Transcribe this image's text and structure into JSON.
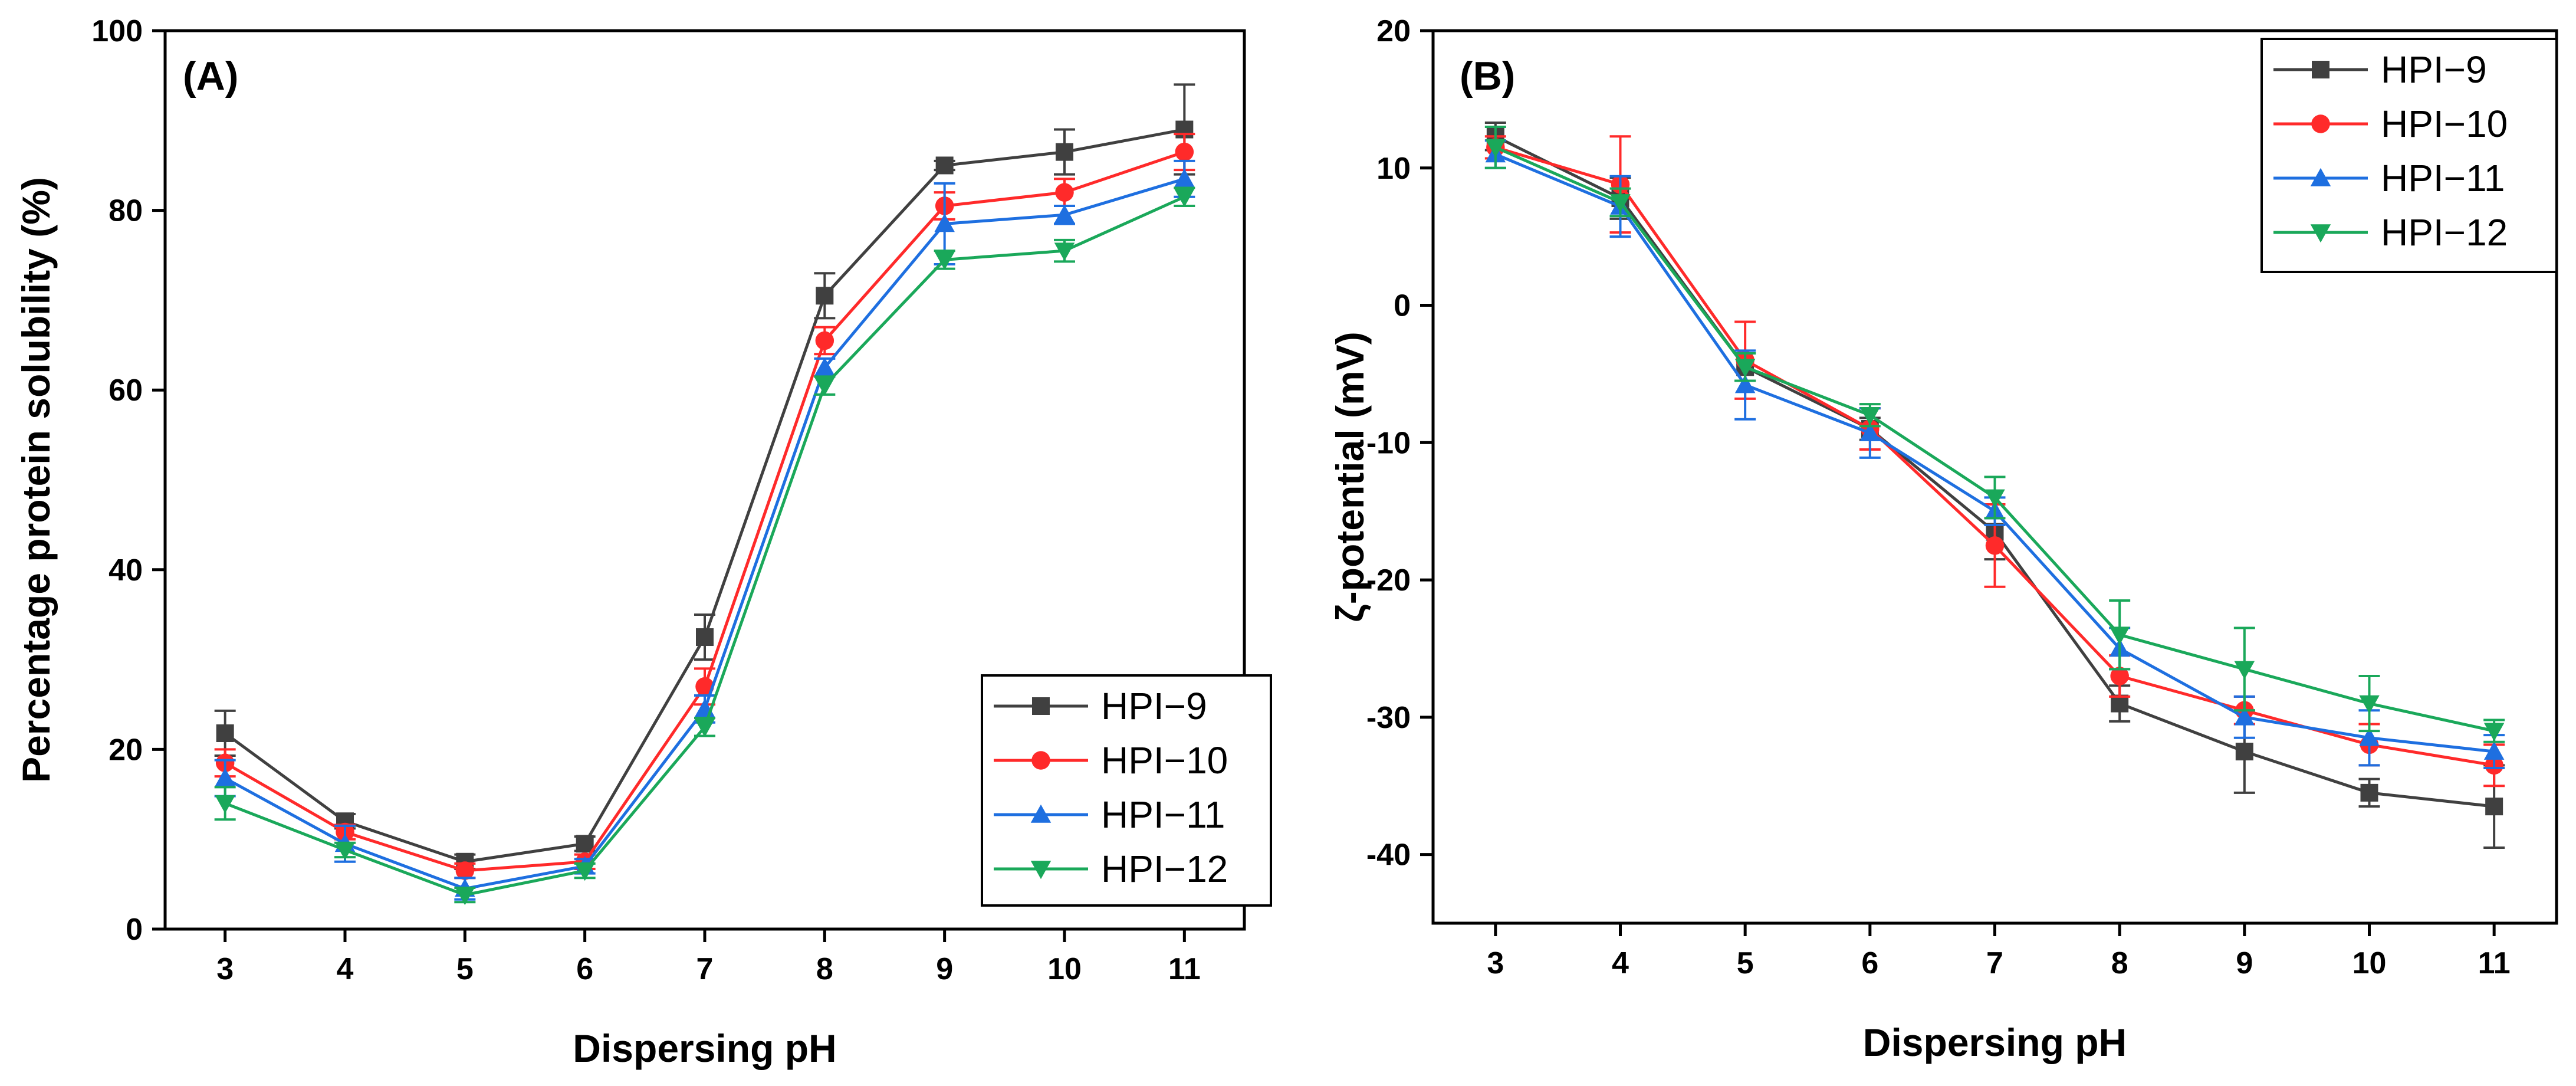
{
  "chart_data": [
    {
      "type": "line",
      "panel_label": "(A)",
      "title": "",
      "xlabel": "Dispersing pH",
      "ylabel": "Percentage protein solubility (%)",
      "x": [
        3,
        4,
        5,
        6,
        7,
        8,
        9,
        10,
        11
      ],
      "xlim": [
        2.5,
        11.5
      ],
      "ylim": [
        0,
        100
      ],
      "yticks": [
        0,
        20,
        40,
        60,
        80,
        100
      ],
      "legend_position": "bottom-right",
      "series": [
        {
          "name": "HPI−9",
          "color": "#404040",
          "marker": "square",
          "values": [
            21.8,
            12.0,
            7.5,
            9.5,
            32.5,
            70.5,
            85.0,
            86.5,
            89.0
          ],
          "errors": [
            2.5,
            0.8,
            0.8,
            0.8,
            2.5,
            2.5,
            0.5,
            2.5,
            5.0
          ]
        },
        {
          "name": "HPI−10",
          "color": "#ff2a2a",
          "marker": "circle",
          "values": [
            18.5,
            10.8,
            6.5,
            7.5,
            27.0,
            65.5,
            80.5,
            82.0,
            86.5
          ],
          "errors": [
            1.5,
            0.8,
            0.8,
            0.8,
            2.0,
            1.5,
            1.5,
            1.5,
            2.0
          ]
        },
        {
          "name": "HPI−11",
          "color": "#1e6fe0",
          "marker": "triangle-up",
          "values": [
            16.8,
            9.5,
            4.5,
            7.0,
            24.5,
            62.5,
            78.5,
            79.5,
            83.5
          ],
          "errors": [
            2.0,
            2.0,
            1.2,
            0.8,
            1.5,
            1.0,
            4.5,
            1.0,
            2.0
          ]
        },
        {
          "name": "HPI−12",
          "color": "#1aa85a",
          "marker": "triangle-down",
          "values": [
            14.0,
            8.8,
            3.8,
            6.5,
            22.5,
            60.5,
            74.5,
            75.5,
            81.5
          ],
          "errors": [
            1.8,
            0.8,
            0.8,
            0.8,
            1.0,
            1.0,
            1.0,
            1.2,
            1.0
          ]
        }
      ]
    },
    {
      "type": "line",
      "panel_label": "(B)",
      "title": "",
      "xlabel": "Dispersing pH",
      "ylabel": "ζ-potential (mV)",
      "x": [
        3,
        4,
        5,
        6,
        7,
        8,
        9,
        10,
        11
      ],
      "xlim": [
        2.5,
        11.5
      ],
      "ylim": [
        -45,
        20
      ],
      "yticks": [
        -40,
        -30,
        -20,
        -10,
        0,
        10,
        20
      ],
      "legend_position": "top-right",
      "series": [
        {
          "name": "HPI−9",
          "color": "#404040",
          "marker": "square",
          "values": [
            12.3,
            7.8,
            -4.5,
            -9.0,
            -16.5,
            -29.0,
            -32.5,
            -35.5,
            -36.5
          ],
          "errors": [
            1.0,
            1.5,
            1.0,
            0.8,
            2.0,
            1.3,
            3.0,
            1.0,
            3.0
          ]
        },
        {
          "name": "HPI−10",
          "color": "#ff2a2a",
          "marker": "circle",
          "values": [
            11.5,
            8.8,
            -4.0,
            -9.0,
            -17.5,
            -27.0,
            -29.5,
            -32.0,
            -33.5
          ],
          "errors": [
            0.8,
            3.5,
            2.8,
            1.5,
            3.0,
            1.5,
            1.0,
            1.5,
            1.5
          ]
        },
        {
          "name": "HPI−11",
          "color": "#1e6fe0",
          "marker": "triangle-up",
          "values": [
            11.0,
            7.2,
            -5.8,
            -9.3,
            -15.0,
            -25.0,
            -30.0,
            -31.5,
            -32.5
          ],
          "errors": [
            1.0,
            2.2,
            2.5,
            1.8,
            1.0,
            1.5,
            1.5,
            2.0,
            1.2
          ]
        },
        {
          "name": "HPI−12",
          "color": "#1aa85a",
          "marker": "triangle-down",
          "values": [
            11.5,
            7.5,
            -4.5,
            -8.0,
            -14.0,
            -24.0,
            -26.5,
            -29.0,
            -31.0
          ],
          "errors": [
            1.5,
            1.0,
            1.0,
            0.8,
            1.5,
            2.5,
            3.0,
            2.0,
            0.8
          ]
        }
      ]
    }
  ]
}
